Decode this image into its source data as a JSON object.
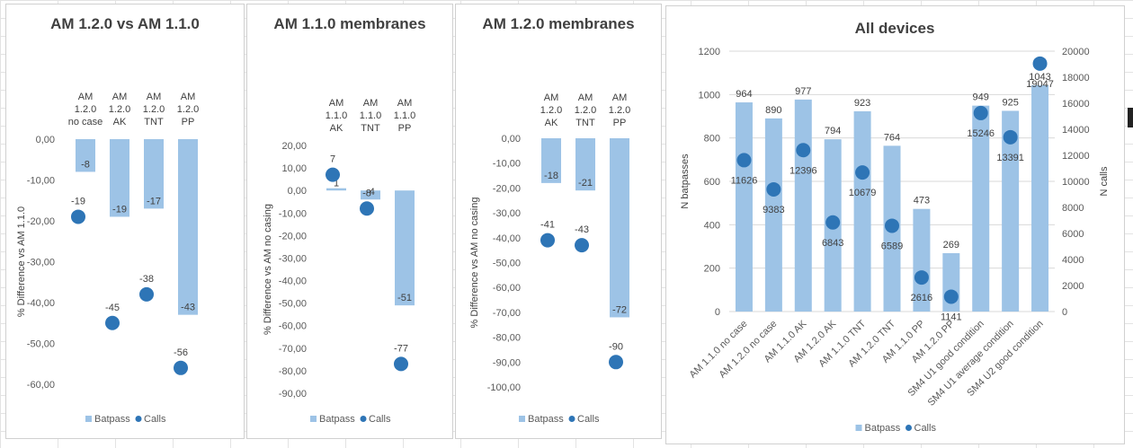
{
  "colors": {
    "bar": "#9DC3E6",
    "dot": "#2E75B6"
  },
  "legend": {
    "bar": "Batpass",
    "dot": "Calls"
  },
  "chart_data": [
    {
      "type": "bar",
      "title": "AM 1.2.0 vs AM 1.1.0",
      "ylabel": "% Difference vs AM 1.1.0",
      "categories": [
        [
          "AM",
          "1.2.0",
          "no case"
        ],
        [
          "AM",
          "1.2.0",
          "AK"
        ],
        [
          "AM",
          "1.2.0",
          "TNT"
        ],
        [
          "AM",
          "1.2.0",
          "PP"
        ]
      ],
      "ylim": [
        -60,
        0
      ],
      "yticks": [
        0,
        -10,
        -20,
        -30,
        -40,
        -50,
        -60
      ],
      "series": [
        {
          "name": "Batpass",
          "kind": "bar",
          "values": [
            -8,
            -19,
            -17,
            -43
          ]
        },
        {
          "name": "Calls",
          "kind": "dot",
          "values": [
            -19,
            -45,
            -38,
            -56
          ]
        }
      ],
      "grid": false,
      "legend": "bottom"
    },
    {
      "type": "bar",
      "title": "AM 1.1.0 membranes",
      "ylabel": "% Difference vs AM  no casing",
      "categories": [
        [
          "AM",
          "1.1.0",
          "AK"
        ],
        [
          "AM",
          "1.1.0",
          "TNT"
        ],
        [
          "AM",
          "1.1.0",
          "PP"
        ]
      ],
      "ylim": [
        -90,
        20
      ],
      "yticks": [
        20,
        10,
        0,
        -10,
        -20,
        -30,
        -40,
        -50,
        -60,
        -70,
        -80,
        -90
      ],
      "series": [
        {
          "name": "Batpass",
          "kind": "bar",
          "values": [
            1,
            -4,
            -51
          ]
        },
        {
          "name": "Calls",
          "kind": "dot",
          "values": [
            7,
            -8,
            -77
          ]
        }
      ],
      "grid": false,
      "legend": "bottom"
    },
    {
      "type": "bar",
      "title": "AM 1.2.0 membranes",
      "ylabel": "% Difference vs AM  no casing",
      "categories": [
        [
          "AM",
          "1.2.0",
          "AK"
        ],
        [
          "AM",
          "1.2.0",
          "TNT"
        ],
        [
          "AM",
          "1.2.0",
          "PP"
        ]
      ],
      "ylim": [
        -100,
        0
      ],
      "yticks": [
        0,
        -10,
        -20,
        -30,
        -40,
        -50,
        -60,
        -70,
        -80,
        -90,
        -100
      ],
      "series": [
        {
          "name": "Batpass",
          "kind": "bar",
          "values": [
            -18,
            -21,
            -72
          ]
        },
        {
          "name": "Calls",
          "kind": "dot",
          "values": [
            -41,
            -43,
            -90
          ]
        }
      ],
      "grid": false,
      "legend": "bottom"
    },
    {
      "type": "bar",
      "title": "All devices",
      "ylabel": "N batpasses",
      "y2label": "N calls",
      "categories": [
        "AM 1.1.0 no case",
        "AM 1.2.0 no case",
        "AM 1.1.0 AK",
        "AM 1.2.0 AK",
        "AM 1.1.0 TNT",
        "AM 1.2.0 TNT",
        "AM 1.1.0 PP",
        "AM 1.2.0 PP",
        "SM4 U1 good condition",
        "SM4 U1 average condition",
        "SM4 U2 good condition"
      ],
      "ylim": [
        0,
        1200
      ],
      "yticks": [
        0,
        200,
        400,
        600,
        800,
        1000,
        1200
      ],
      "y2lim": [
        0,
        20000
      ],
      "y2ticks": [
        0,
        2000,
        4000,
        6000,
        8000,
        10000,
        12000,
        14000,
        16000,
        18000,
        20000
      ],
      "series": [
        {
          "name": "Batpass",
          "kind": "bar",
          "axis": "left",
          "values": [
            964,
            890,
            977,
            794,
            923,
            764,
            473,
            269,
            949,
            925,
            1043
          ]
        },
        {
          "name": "Calls",
          "kind": "dot",
          "axis": "right",
          "values": [
            11626,
            9383,
            12396,
            6843,
            10679,
            6589,
            2616,
            1141,
            15246,
            13391,
            19047
          ]
        }
      ],
      "grid": true,
      "legend": "bottom"
    }
  ]
}
